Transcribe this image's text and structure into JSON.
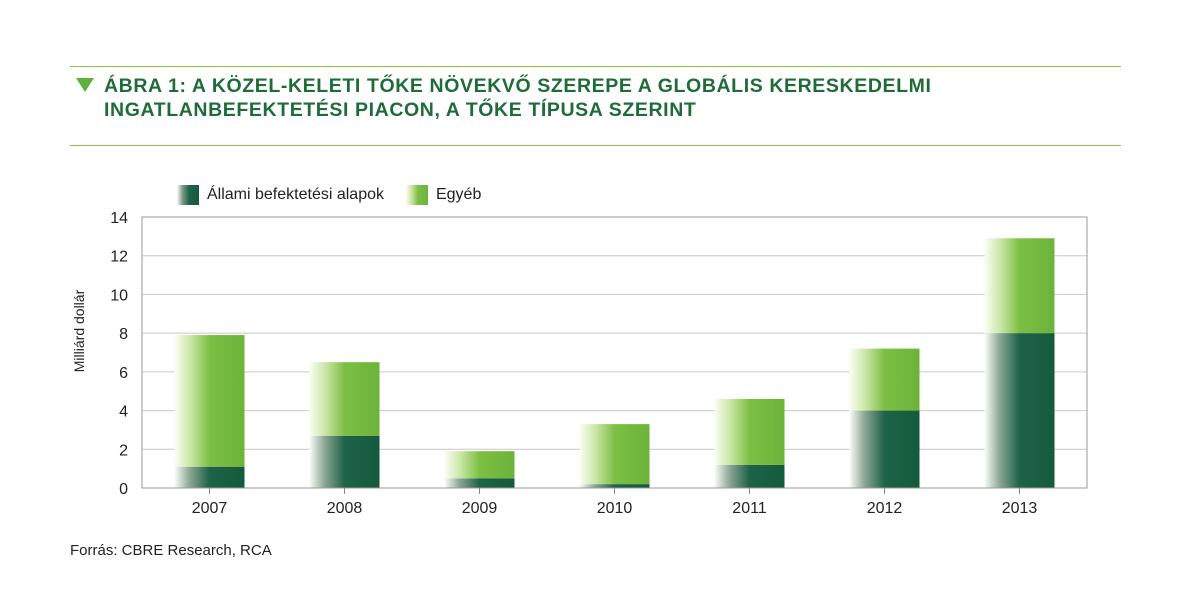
{
  "title": {
    "line1": "ÁBRA 1: A KÖZEL-KELETI TŐKE NÖVEKVŐ SZEREPE A GLOBÁLIS KERESKEDELMI",
    "line2": "INGATLANBEFEKTETÉSI PIACON, A TŐKE TÍPUSA SZERINT"
  },
  "source": "Forrás: CBRE Research, RCA",
  "colors": {
    "accent": "#1f6b3a",
    "rule": "#8cc63f",
    "state_funds": "#145a3c",
    "other": "#6cb33a"
  },
  "chart_data": {
    "type": "bar",
    "stacked": true,
    "categories": [
      "2007",
      "2008",
      "2009",
      "2010",
      "2011",
      "2012",
      "2013"
    ],
    "series": [
      {
        "name": "Állami befektetési alapok",
        "values": [
          1.1,
          2.7,
          0.5,
          0.2,
          1.2,
          4.0,
          8.0
        ]
      },
      {
        "name": "Egyéb",
        "values": [
          6.8,
          3.8,
          1.4,
          3.1,
          3.4,
          3.2,
          4.9
        ]
      }
    ],
    "ylabel": "Milliárd dollár",
    "xlabel": "",
    "ylim": [
      0,
      14
    ],
    "yticks": [
      0,
      2,
      4,
      6,
      8,
      10,
      12,
      14
    ],
    "grid": true,
    "legend_position": "top-left"
  }
}
